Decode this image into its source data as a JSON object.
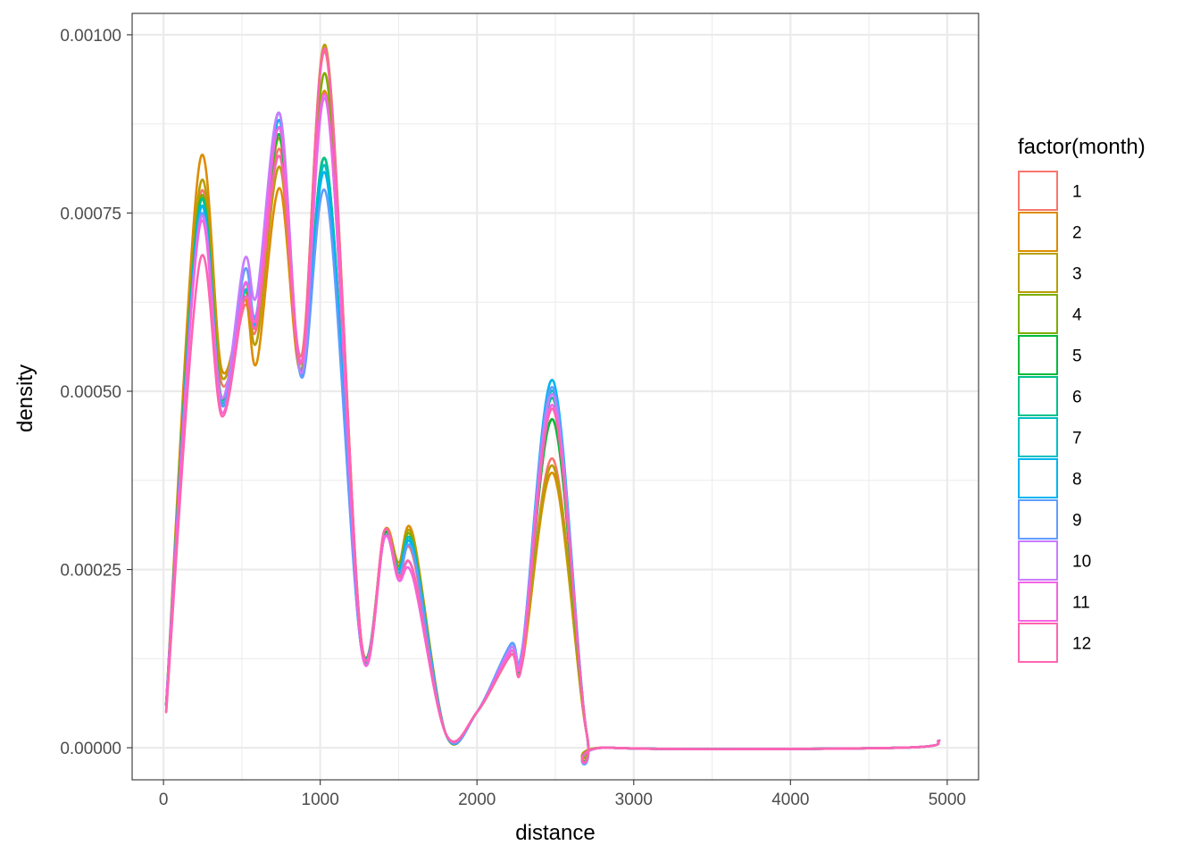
{
  "chart_data": {
    "type": "line",
    "subtype": "density",
    "xlabel": "distance",
    "ylabel": "density",
    "xlim": [
      -200,
      5200
    ],
    "ylim": [
      -4.5e-05,
      0.00103
    ],
    "x_ticks": [
      0,
      1000,
      2000,
      3000,
      4000,
      5000
    ],
    "x_tick_labels": [
      "0",
      "1000",
      "2000",
      "3000",
      "4000",
      "5000"
    ],
    "y_ticks": [
      0,
      0.00025,
      0.0005,
      0.00075,
      0.001
    ],
    "y_tick_labels": [
      "0.00000",
      "0.00025",
      "0.00050",
      "0.00075",
      "0.00100"
    ],
    "grid": true,
    "legend": {
      "title": "factor(month)",
      "position": "right",
      "entries": [
        "1",
        "2",
        "3",
        "4",
        "5",
        "6",
        "7",
        "8",
        "9",
        "10",
        "11",
        "12"
      ]
    },
    "x": [
      17,
      230,
      372,
      517,
      595,
      740,
      880,
      1040,
      1262,
      1410,
      1500,
      1590,
      1800,
      2000,
      2215,
      2290,
      2485,
      2700,
      2850,
      4700,
      4950
    ],
    "series": [
      {
        "name": "1",
        "color": "#F8766D",
        "values": [
          5e-05,
          0.00077,
          0.00051,
          0.00062,
          0.00059,
          0.00084,
          0.00055,
          0.00097,
          0.00015,
          0.0003,
          0.00025,
          0.00027,
          2e-05,
          5e-05,
          0.00013,
          0.00012,
          0.000405,
          2e-05,
          0.0,
          0.0,
          1e-05
        ]
      },
      {
        "name": "2",
        "color": "#DE8C00",
        "values": [
          6e-05,
          0.00082,
          0.00053,
          0.00063,
          0.00054,
          0.000785,
          0.00053,
          0.000915,
          0.00015,
          0.000305,
          0.00026,
          0.0003,
          2e-05,
          5e-05,
          0.00013,
          0.00012,
          0.000385,
          2e-05,
          0.0,
          0.0,
          1e-05
        ]
      },
      {
        "name": "3",
        "color": "#B79F00",
        "values": [
          6e-05,
          0.000785,
          0.00052,
          0.00064,
          0.00057,
          0.000815,
          0.00054,
          0.00098,
          0.00015,
          0.0003,
          0.000255,
          0.000295,
          2e-05,
          5e-05,
          0.00013,
          0.000125,
          0.000395,
          2e-05,
          0.0,
          0.0,
          1e-05
        ]
      },
      {
        "name": "4",
        "color": "#7CAE00",
        "values": [
          6e-05,
          0.000765,
          0.00049,
          0.00065,
          0.000595,
          0.000855,
          0.00053,
          0.00094,
          0.000145,
          0.0003,
          0.000255,
          0.00029,
          2e-05,
          5e-05,
          0.000135,
          0.000125,
          0.00046,
          2e-05,
          0.0,
          0.0,
          1e-05
        ]
      },
      {
        "name": "5",
        "color": "#00BA38",
        "values": [
          6e-05,
          0.00076,
          0.00049,
          0.00064,
          0.00061,
          0.00086,
          0.000525,
          0.00082,
          0.000145,
          0.0003,
          0.00025,
          0.000285,
          2e-05,
          5e-05,
          0.000135,
          0.000125,
          0.00046,
          2e-05,
          0.0,
          0.0,
          1e-05
        ]
      },
      {
        "name": "6",
        "color": "#00C08B",
        "values": [
          6e-05,
          0.00076,
          0.000485,
          0.00064,
          0.000605,
          0.00087,
          0.00052,
          0.00082,
          0.00014,
          0.000295,
          0.00025,
          0.00028,
          2e-05,
          5e-05,
          0.00014,
          0.00013,
          0.00049,
          2e-05,
          0.0,
          0.0,
          1e-05
        ]
      },
      {
        "name": "7",
        "color": "#00BFC4",
        "values": [
          6e-05,
          0.00075,
          0.000485,
          0.00064,
          0.000605,
          0.00087,
          0.00052,
          0.00081,
          0.00014,
          0.000295,
          0.00025,
          0.000285,
          2e-05,
          5e-05,
          0.000145,
          0.000135,
          0.0005,
          2e-05,
          0.0,
          0.0,
          1e-05
        ]
      },
      {
        "name": "8",
        "color": "#00B4F0",
        "values": [
          6e-05,
          0.00075,
          0.00048,
          0.00065,
          0.0006,
          0.00088,
          0.00052,
          0.0008,
          0.00014,
          0.000295,
          0.000245,
          0.00028,
          2e-05,
          5e-05,
          0.000145,
          0.00014,
          0.000515,
          2e-05,
          0.0,
          0.0,
          1e-05
        ]
      },
      {
        "name": "9",
        "color": "#619CFF",
        "values": [
          6e-05,
          0.00074,
          0.00048,
          0.00067,
          0.00061,
          0.00089,
          0.00052,
          0.000775,
          0.00014,
          0.000295,
          0.00024,
          0.000275,
          2e-05,
          5e-05,
          0.000145,
          0.00014,
          0.000505,
          2e-05,
          0.0,
          0.0,
          1e-05
        ]
      },
      {
        "name": "10",
        "color": "#C77CFF",
        "values": [
          6e-05,
          0.000735,
          0.00049,
          0.000685,
          0.000635,
          0.00089,
          0.000525,
          0.000905,
          0.00014,
          0.000295,
          0.000235,
          0.00025,
          2e-05,
          5e-05,
          0.00014,
          0.000135,
          0.000495,
          2e-05,
          0.0,
          0.0,
          1e-05
        ]
      },
      {
        "name": "11",
        "color": "#F564E3",
        "values": [
          6e-05,
          0.00073,
          0.00047,
          0.00065,
          0.000605,
          0.00087,
          0.00054,
          0.00091,
          0.00014,
          0.000295,
          0.000235,
          0.00024,
          2e-05,
          5e-05,
          0.000135,
          0.00013,
          0.00048,
          2e-05,
          0.0,
          0.0,
          1e-05
        ]
      },
      {
        "name": "12",
        "color": "#FF64B0",
        "values": [
          5e-05,
          0.00068,
          0.000465,
          0.00063,
          0.000595,
          0.00083,
          0.00054,
          0.000975,
          0.00015,
          0.000305,
          0.00024,
          0.00025,
          2e-05,
          5e-05,
          0.00013,
          0.00012,
          0.000475,
          2e-05,
          0.0,
          0.0,
          1e-05
        ]
      }
    ]
  }
}
